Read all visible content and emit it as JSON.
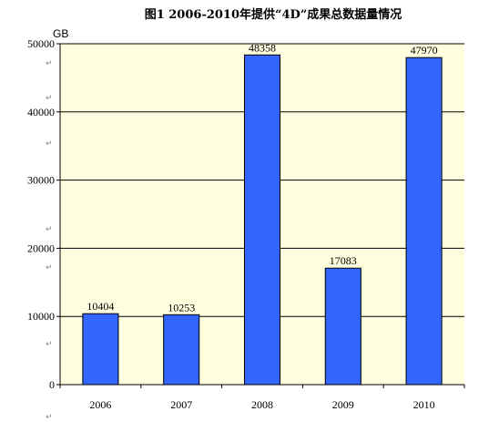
{
  "chart_data": {
    "type": "bar",
    "title": "图1 2006-2010年提供“4D”成果总数据量情况",
    "unit_label": "GB",
    "categories": [
      "2006",
      "2007",
      "2008",
      "2009",
      "2010"
    ],
    "values": [
      10404,
      10253,
      48358,
      17083,
      47970
    ],
    "ylim": [
      0,
      50000
    ],
    "yticks": [
      "0",
      "10000",
      "20000",
      "30000",
      "40000",
      "50000"
    ],
    "grid": true,
    "legend": "none",
    "colors": {
      "bar": "#3366ff",
      "plot_background": "#ffffe0",
      "gridline": "#000000"
    }
  }
}
